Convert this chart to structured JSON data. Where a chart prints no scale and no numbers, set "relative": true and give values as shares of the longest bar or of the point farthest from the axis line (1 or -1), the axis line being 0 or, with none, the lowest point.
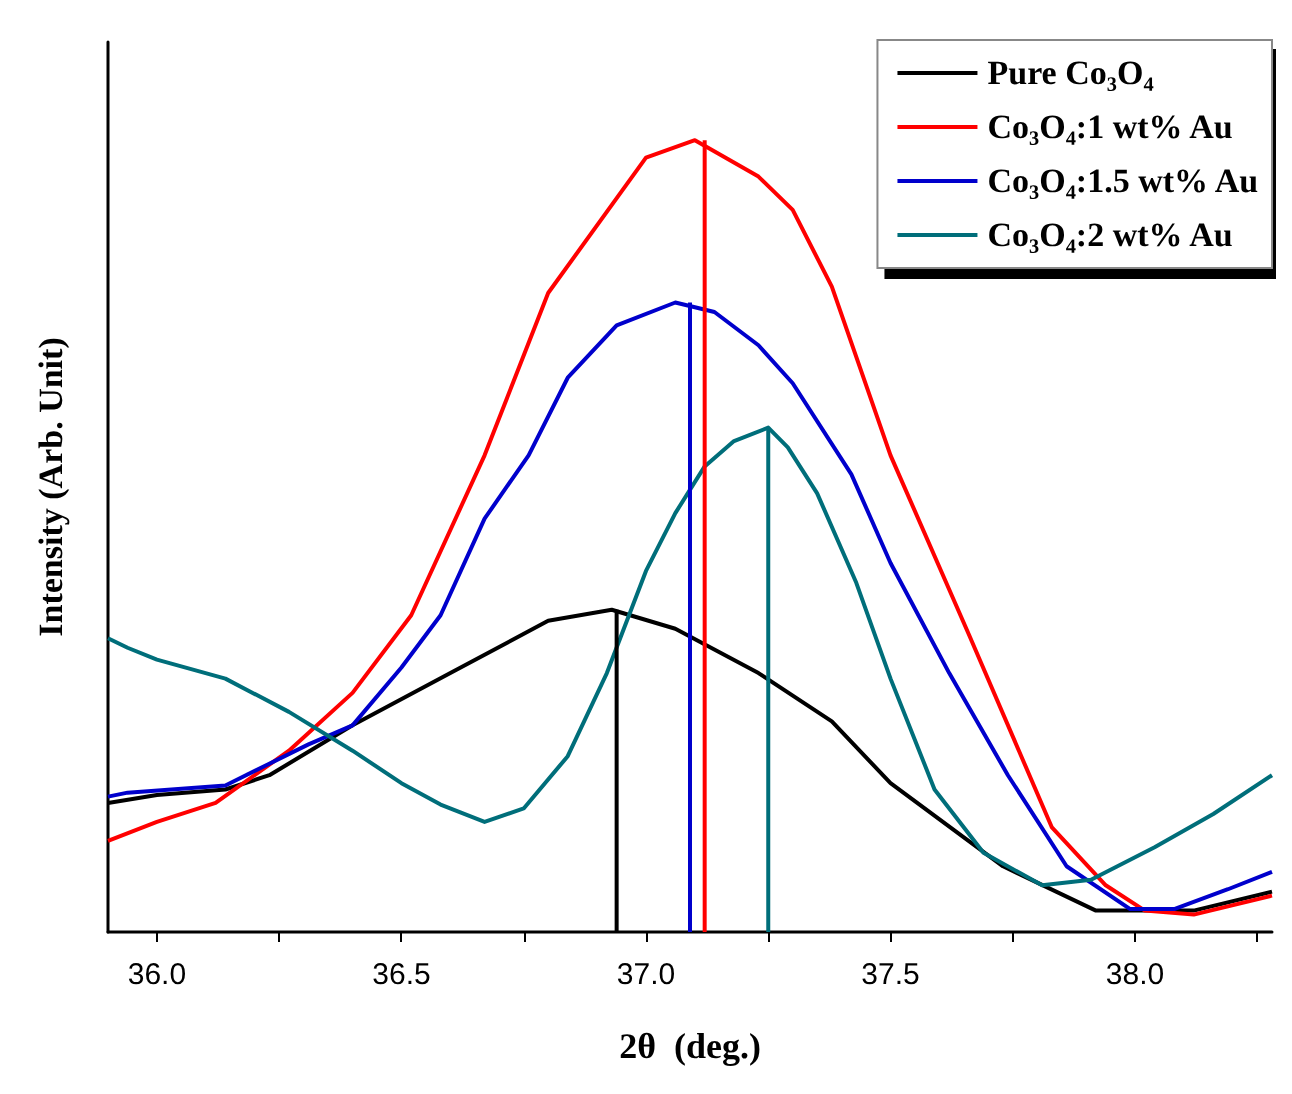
{
  "chart_data": {
    "type": "line",
    "relative": true,
    "xlabel": "2θ  (deg.)",
    "ylabel": "Intensity (Arb. Unit)",
    "xlim": [
      35.9,
      38.28
    ],
    "xticks": [
      {
        "value": 36,
        "label": "36.0"
      },
      {
        "value": 36.25,
        "label": null
      },
      {
        "value": 36.5,
        "label": "36.5"
      },
      {
        "value": 36.75,
        "label": null
      },
      {
        "value": 37,
        "label": "37.0"
      },
      {
        "value": 37.25,
        "label": null
      },
      {
        "value": 37.5,
        "label": "37.5"
      },
      {
        "value": 37.75,
        "label": null
      },
      {
        "value": 38,
        "label": "38.0"
      },
      {
        "value": 38.25,
        "label": null
      }
    ],
    "grid": false,
    "legend": "top right",
    "series": [
      {
        "name": "Pure Co₃O₄",
        "color": "#000000",
        "x": [
          35.9,
          36.0,
          36.14,
          36.23,
          36.4,
          36.6,
          36.8,
          36.93,
          37.06,
          37.23,
          37.38,
          37.5,
          37.73,
          37.92,
          38.12,
          38.28
        ],
        "values": [
          0.163,
          0.173,
          0.18,
          0.198,
          0.261,
          0.327,
          0.393,
          0.407,
          0.383,
          0.327,
          0.266,
          0.188,
          0.083,
          0.027,
          0.027,
          0.051
        ]
      },
      {
        "name": "Co₃O₄:1 wt% Au",
        "color": "#ff0000",
        "x": [
          35.9,
          36.0,
          36.12,
          36.27,
          36.4,
          36.52,
          36.67,
          36.8,
          37.0,
          37.1,
          37.23,
          37.3,
          37.38,
          37.5,
          37.66,
          37.83,
          37.94,
          38.02,
          38.12,
          38.28
        ],
        "values": [
          0.115,
          0.139,
          0.163,
          0.229,
          0.302,
          0.4,
          0.602,
          0.807,
          0.978,
          1.0,
          0.954,
          0.912,
          0.815,
          0.602,
          0.376,
          0.132,
          0.059,
          0.027,
          0.022,
          0.046
        ]
      },
      {
        "name": "Co₃O₄:1.5 wt% Au",
        "color": "#0000cc",
        "x": [
          35.9,
          35.94,
          36.14,
          36.31,
          36.4,
          36.5,
          36.58,
          36.67,
          36.76,
          36.84,
          36.94,
          37.06,
          37.14,
          37.23,
          37.3,
          37.42,
          37.5,
          37.62,
          37.74,
          37.86,
          37.99,
          38.08,
          38.19,
          38.28
        ],
        "values": [
          0.171,
          0.176,
          0.185,
          0.237,
          0.261,
          0.334,
          0.4,
          0.522,
          0.602,
          0.7,
          0.766,
          0.795,
          0.783,
          0.741,
          0.693,
          0.578,
          0.466,
          0.327,
          0.198,
          0.083,
          0.029,
          0.029,
          0.054,
          0.076
        ]
      },
      {
        "name": "Co₃O₄:2 wt% Au",
        "color": "#006e7a",
        "x": [
          35.9,
          35.94,
          36.0,
          36.14,
          36.27,
          36.4,
          36.5,
          36.58,
          36.67,
          36.75,
          36.84,
          36.92,
          37.0,
          37.06,
          37.12,
          37.18,
          37.25,
          37.29,
          37.35,
          37.43,
          37.5,
          37.59,
          37.69,
          37.81,
          37.91,
          38.04,
          38.16,
          38.28
        ],
        "values": [
          0.371,
          0.359,
          0.344,
          0.32,
          0.278,
          0.229,
          0.188,
          0.161,
          0.139,
          0.156,
          0.222,
          0.327,
          0.456,
          0.529,
          0.588,
          0.62,
          0.637,
          0.612,
          0.554,
          0.441,
          0.32,
          0.18,
          0.1,
          0.059,
          0.066,
          0.107,
          0.149,
          0.198
        ]
      },
      {
        "color": "#000000",
        "x": [
          36.94,
          36.94
        ],
        "values": [
          0,
          0.407
        ]
      },
      {
        "color": "#ff0000",
        "x": [
          37.12,
          37.12
        ],
        "values": [
          0,
          1.0
        ]
      },
      {
        "color": "#0000cc",
        "x": [
          37.09,
          37.09
        ],
        "values": [
          0,
          0.795
        ]
      },
      {
        "color": "#006e7a",
        "x": [
          37.25,
          37.25
        ],
        "values": [
          0,
          0.637
        ]
      }
    ]
  }
}
